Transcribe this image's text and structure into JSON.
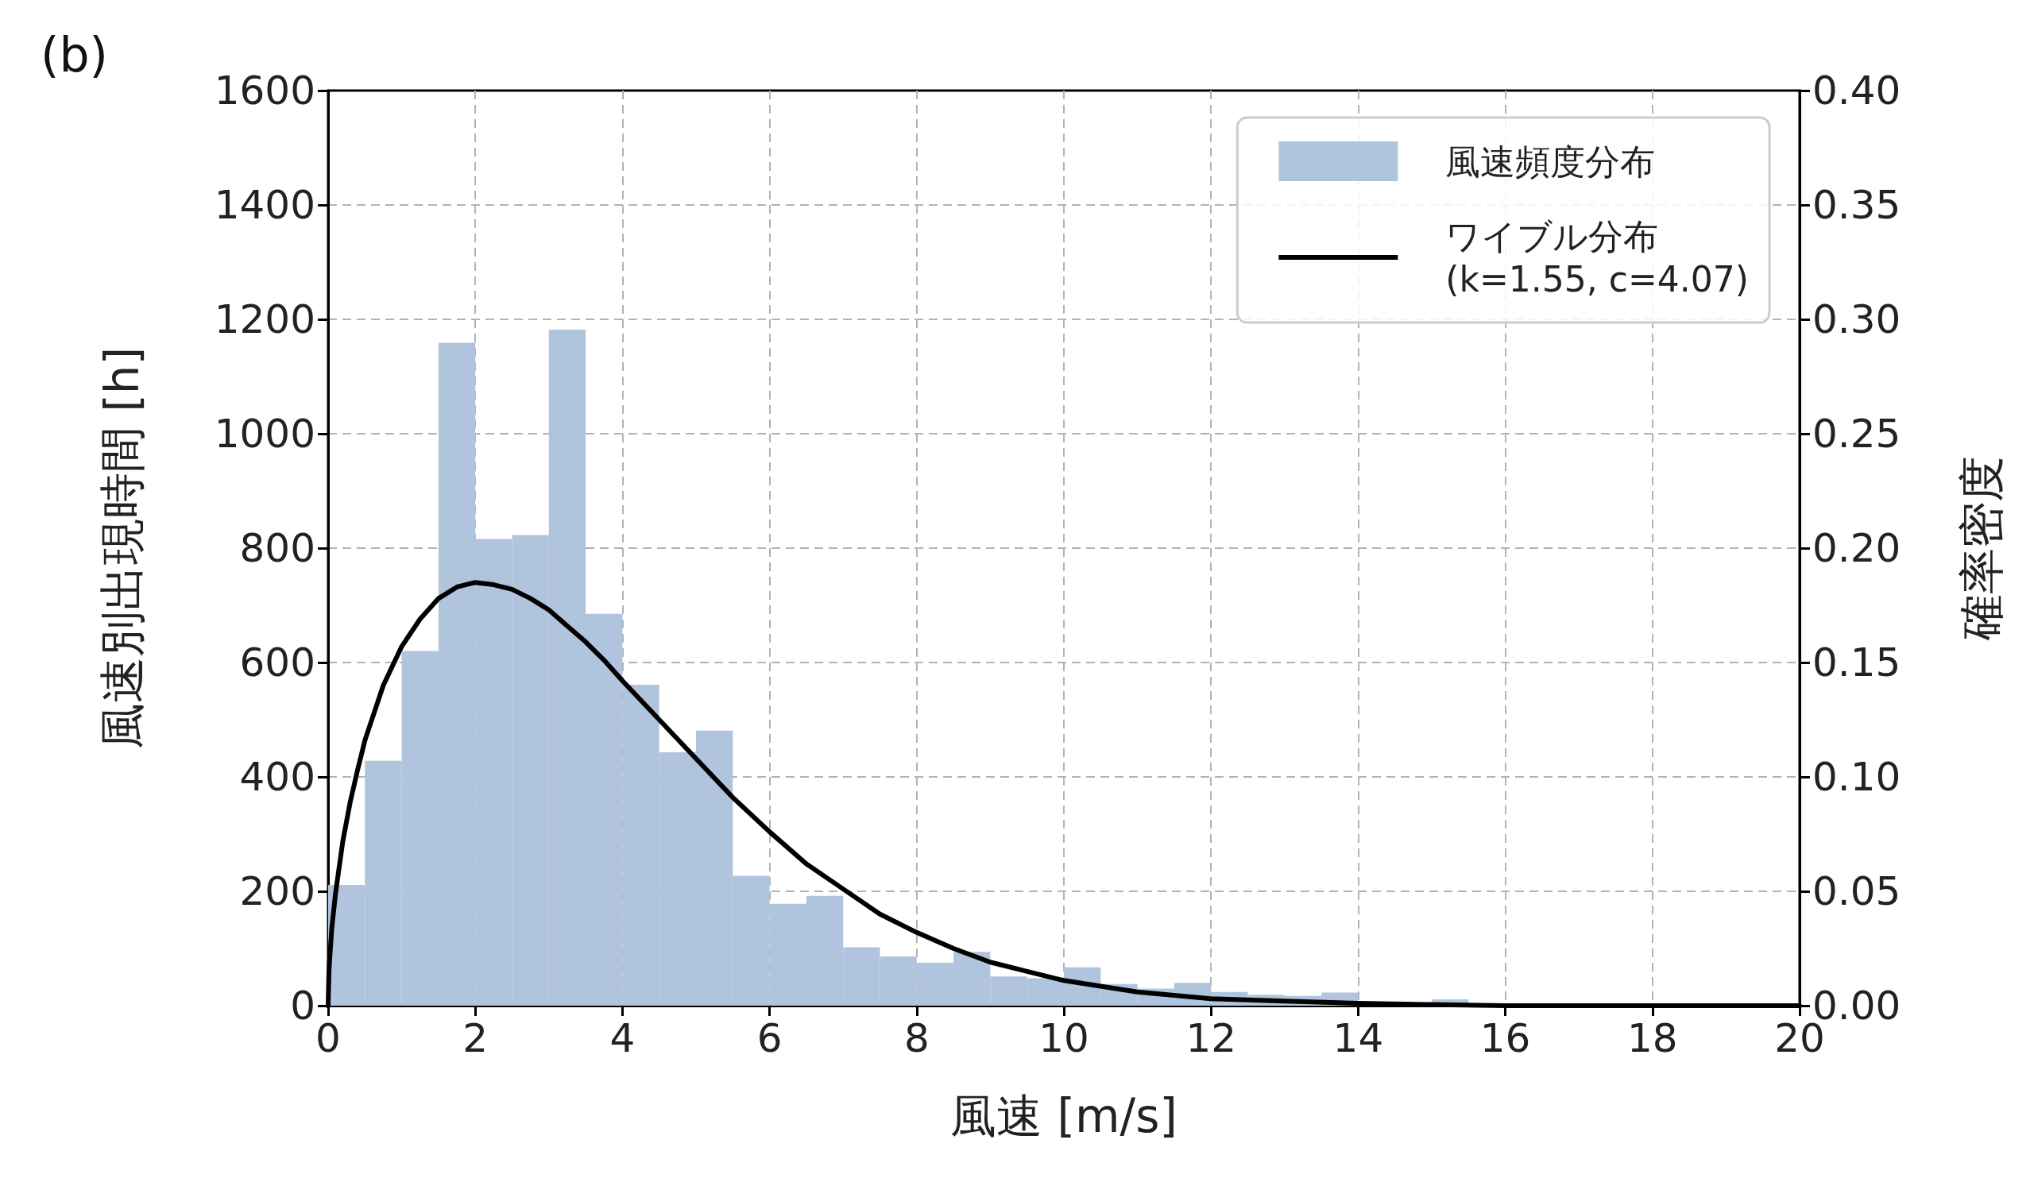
{
  "chart_data": {
    "type": "histogram",
    "title": "(b)",
    "xlabel": "風速 [m/s]",
    "ylabel": "風速別出現時間 [h]",
    "y2label": "確率密度",
    "bins": [
      0,
      0.5,
      1,
      1.5,
      2,
      2.5,
      3,
      3.5,
      4,
      4.5,
      5,
      5.5,
      6,
      6.5,
      7,
      7.5,
      8,
      8.5,
      9,
      9.5,
      10,
      10.5,
      11,
      11.5,
      12,
      12.5,
      13,
      13.5,
      14,
      14.5,
      15,
      15.5
    ],
    "series": [
      {
        "name": "風速頻度分布",
        "color": "#b0c4de",
        "values": [
          211,
          428,
          620,
          1159,
          816,
          823,
          1182,
          685,
          561,
          443,
          481,
          227,
          178,
          192,
          102,
          86,
          75,
          94,
          51,
          48,
          67,
          38,
          30,
          40,
          24,
          19,
          17,
          23,
          null,
          null,
          11
        ]
      },
      {
        "name": "ワイブル分布\n(k=1.55, c=4.07)",
        "type": "line",
        "axis": "y2",
        "color": "#000000",
        "x": [
          0,
          0.01,
          0.02,
          0.05,
          0.1,
          0.2,
          0.3,
          0.4,
          0.5,
          0.75,
          1,
          1.25,
          1.5,
          1.75,
          2,
          2.25,
          2.5,
          2.75,
          3,
          3.25,
          3.5,
          3.75,
          4,
          4.5,
          5,
          5.5,
          6,
          6.5,
          7,
          7.5,
          8,
          8.5,
          9,
          9.5,
          10,
          11,
          12,
          13,
          14,
          16,
          18,
          20
        ],
        "values": [
          0,
          0.014,
          0.02,
          0.034,
          0.049,
          0.072,
          0.089,
          0.103,
          0.116,
          0.14,
          0.157,
          0.169,
          0.178,
          0.183,
          0.185,
          0.184,
          0.182,
          0.178,
          0.173,
          0.166,
          0.159,
          0.151,
          0.142,
          0.125,
          0.108,
          0.091,
          0.076,
          0.062,
          0.051,
          0.04,
          0.032,
          0.025,
          0.019,
          0.015,
          0.011,
          0.006,
          0.003,
          0.002,
          0.001,
          0,
          0,
          0
        ]
      }
    ],
    "xlim": [
      0,
      20
    ],
    "xticks": [
      0,
      2,
      4,
      6,
      8,
      10,
      12,
      14,
      16,
      18,
      20
    ],
    "ylim": [
      0,
      1600
    ],
    "yticks": [
      0,
      200,
      400,
      600,
      800,
      1000,
      1200,
      1400,
      1600
    ],
    "y2lim": [
      0,
      0.4
    ],
    "y2ticks": [
      {
        "value": 0,
        "label": "0.00"
      },
      {
        "value": 0.05,
        "label": "0.05"
      },
      {
        "value": 0.1,
        "label": "0.10"
      },
      {
        "value": 0.15,
        "label": "0.15"
      },
      {
        "value": 0.2,
        "label": "0.20"
      },
      {
        "value": 0.25,
        "label": "0.25"
      },
      {
        "value": 0.3,
        "label": "0.30"
      },
      {
        "value": 0.35,
        "label": "0.35"
      },
      {
        "value": 0.4,
        "label": "0.40"
      }
    ],
    "grid": true,
    "legend": "top right",
    "marker": "none"
  }
}
